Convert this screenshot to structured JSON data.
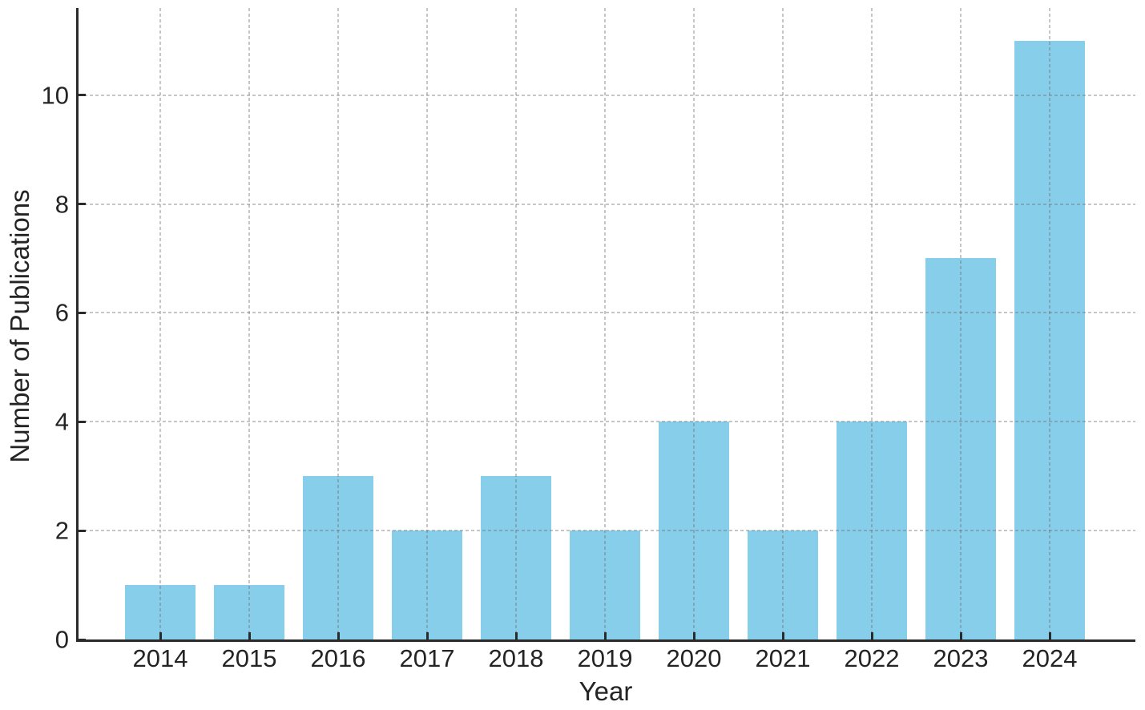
{
  "chart_data": {
    "type": "bar",
    "title": "",
    "xlabel": "Year",
    "ylabel": "Number of Publications",
    "categories": [
      "2014",
      "2015",
      "2016",
      "2017",
      "2018",
      "2019",
      "2020",
      "2021",
      "2022",
      "2023",
      "2024"
    ],
    "values": [
      1,
      1,
      3,
      2,
      3,
      2,
      4,
      2,
      4,
      7,
      11
    ],
    "y_ticks": [
      0,
      2,
      4,
      6,
      8,
      10
    ],
    "y_tick_labels": [
      "0",
      "2",
      "4",
      "6",
      "8",
      "10"
    ],
    "ylim": [
      0,
      11.6
    ],
    "bar_color": "#87CEEB",
    "axis_color": "#2b2b2b",
    "grid_color": "#c9c9c9",
    "grid": "dashed horizontal and vertical gridlines, drawn over bars",
    "legend_position": "none"
  }
}
